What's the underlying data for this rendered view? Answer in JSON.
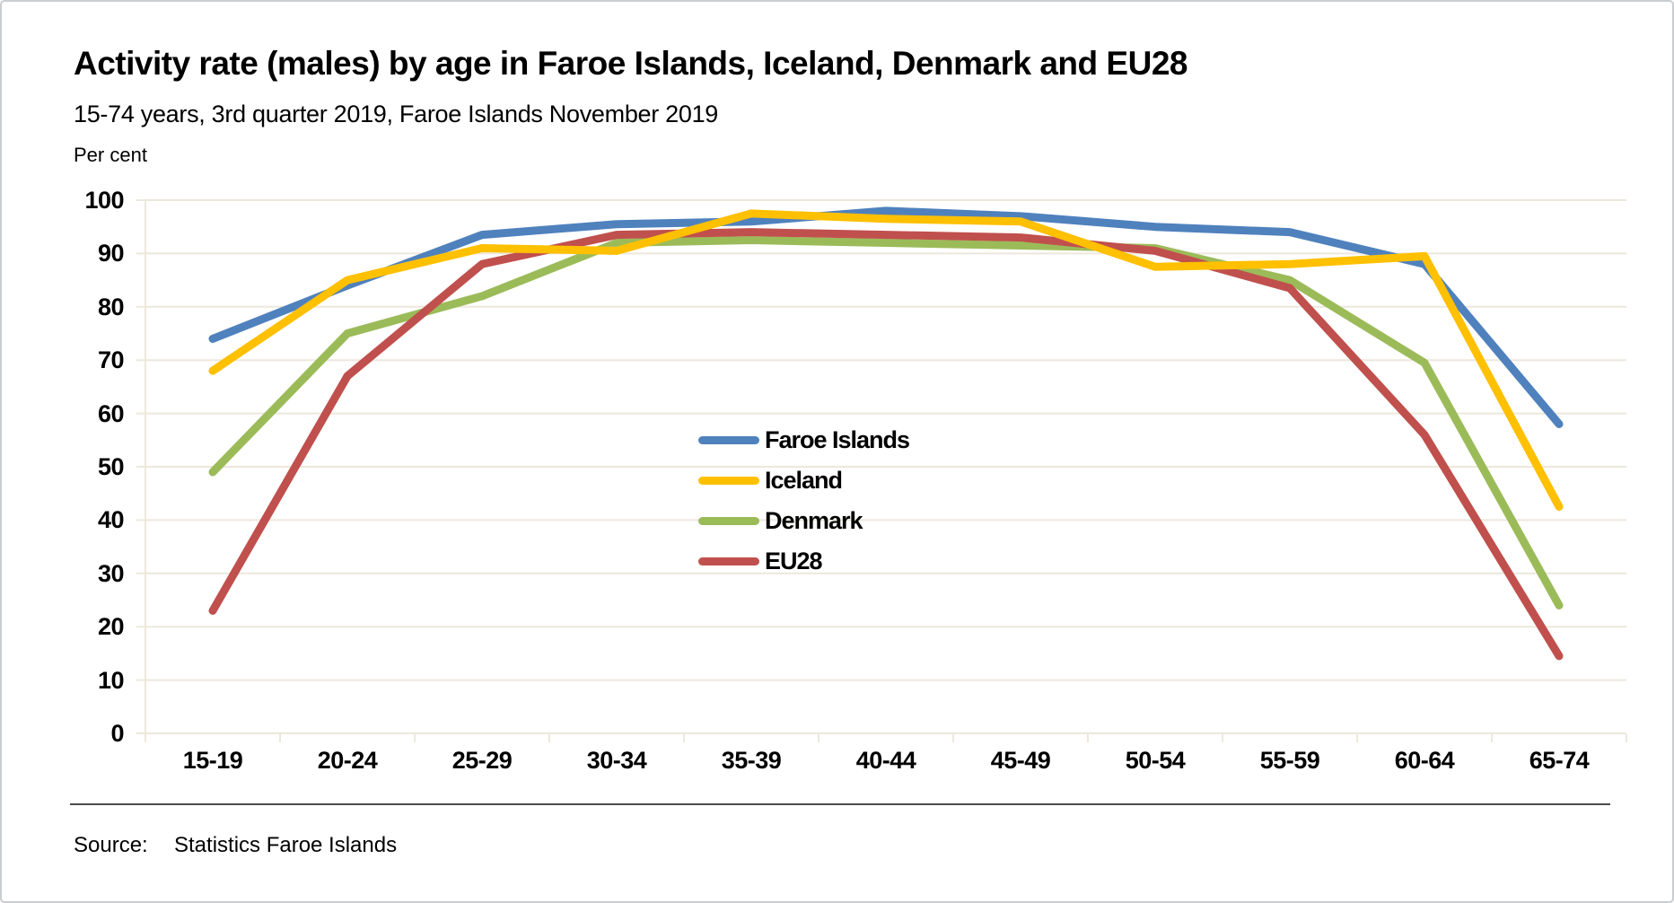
{
  "chart_data": {
    "type": "line",
    "title": "Activity rate (males) by age in Faroe Islands, Iceland, Denmark and EU28",
    "subtitle": "15-74 years, 3rd quarter 2019, Faroe Islands November 2019",
    "unit_label": "Per cent",
    "categories": [
      "15-19",
      "20-24",
      "25-29",
      "30-34",
      "35-39",
      "40-44",
      "45-49",
      "50-54",
      "55-59",
      "60-64",
      "65-74"
    ],
    "series": [
      {
        "name": "Faroe Islands",
        "color": "#4F81BD",
        "values": [
          74,
          84,
          93.5,
          95.5,
          96,
          98,
          97,
          95,
          94,
          88,
          58
        ]
      },
      {
        "name": "Iceland",
        "color": "#FFC000",
        "values": [
          68,
          85,
          91,
          90.5,
          97.5,
          96.5,
          96,
          87.5,
          88,
          89.5,
          42.5
        ]
      },
      {
        "name": "Denmark",
        "color": "#9BBB59",
        "values": [
          49,
          75,
          82,
          92,
          92.5,
          92,
          91.5,
          91,
          85,
          69.5,
          24
        ]
      },
      {
        "name": "EU28",
        "color": "#C0504D",
        "values": [
          23,
          67,
          88,
          93.5,
          94,
          93.5,
          93,
          90.5,
          83.5,
          56,
          14.5
        ]
      }
    ],
    "yticks": [
      0,
      10,
      20,
      30,
      40,
      50,
      60,
      70,
      80,
      90,
      100
    ],
    "ylim": [
      0,
      100
    ],
    "grid": "horizontal",
    "legend_position": "inside-center-left",
    "draw_order": [
      0,
      2,
      3,
      1
    ],
    "source_label": "Source:",
    "source_value": "Statistics Faroe Islands"
  },
  "colors": {
    "gridline": "#EDE8DC",
    "divider": "#4D4D4D",
    "border": "#C9CDD0",
    "text": "#000000"
  }
}
